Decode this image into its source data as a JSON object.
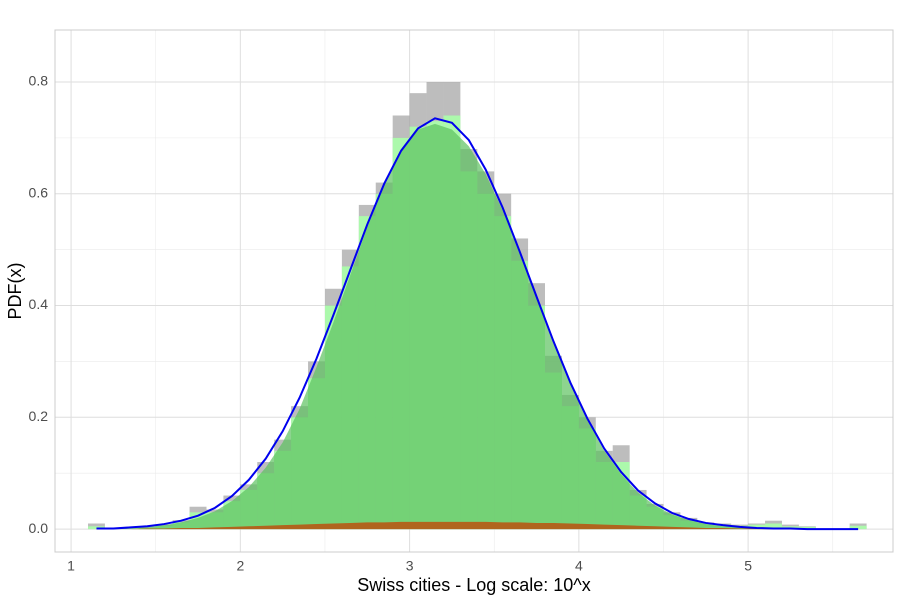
{
  "chart_data": {
    "type": "histogram",
    "x_label": "Swiss cities - Log scale: 10^x",
    "y_label": "PDF(x)",
    "xlim": [
      0.905,
      5.856
    ],
    "ylim": [
      -0.041,
      0.893
    ],
    "xticks": [
      1,
      2,
      3,
      4,
      5
    ],
    "yticks": [
      {
        "value": 0,
        "label": "0.0"
      },
      0.2,
      0.4,
      0.6,
      0.8
    ],
    "x_minor": [
      1.5,
      2.5,
      3.5,
      4.5,
      5.5
    ],
    "y_minor": [
      0.1,
      0.3,
      0.5,
      0.7
    ],
    "grid": true,
    "bins": [
      1.1,
      1.2,
      1.3,
      1.4,
      1.5,
      1.6,
      1.7,
      1.8,
      1.9,
      2.0,
      2.1,
      2.2,
      2.3,
      2.4,
      2.5,
      2.6,
      2.7,
      2.8,
      2.9,
      3.0,
      3.1,
      3.2,
      3.3,
      3.4,
      3.5,
      3.6,
      3.7,
      3.8,
      3.9,
      4.0,
      4.1,
      4.2,
      4.3,
      4.4,
      4.5,
      4.6,
      4.7,
      4.8,
      4.9,
      5.0,
      5.1,
      5.2,
      5.3,
      5.4,
      5.5,
      5.6,
      5.7
    ],
    "histograms": [
      {
        "color": "#999999",
        "opacity": 0.65,
        "values": [
          0.01,
          0,
          0,
          0.003,
          0.008,
          0.016,
          0.04,
          0.035,
          0.06,
          0.08,
          0.12,
          0.16,
          0.22,
          0.3,
          0.43,
          0.5,
          0.58,
          0.62,
          0.74,
          0.78,
          0.8,
          0.8,
          0.68,
          0.64,
          0.6,
          0.52,
          0.44,
          0.31,
          0.24,
          0.2,
          0.14,
          0.15,
          0.07,
          0.045,
          0.03,
          0.02,
          0.012,
          0.01,
          0.008,
          0.01,
          0.015,
          0.008,
          0.005,
          0,
          0,
          0.01
        ]
      },
      {
        "color": "#aaffaa",
        "opacity": 0.9,
        "values": [
          0.005,
          0,
          0,
          0.002,
          0.006,
          0.012,
          0.03,
          0.03,
          0.05,
          0.07,
          0.1,
          0.14,
          0.2,
          0.27,
          0.4,
          0.47,
          0.56,
          0.6,
          0.7,
          0.72,
          0.73,
          0.74,
          0.64,
          0.6,
          0.56,
          0.48,
          0.4,
          0.28,
          0.22,
          0.18,
          0.12,
          0.12,
          0.06,
          0.04,
          0.025,
          0.015,
          0.01,
          0.008,
          0.006,
          0.008,
          0.01,
          0.005,
          0.004,
          0,
          0,
          0.006
        ]
      }
    ],
    "x": [
      1.15,
      1.25,
      1.35,
      1.45,
      1.55,
      1.65,
      1.75,
      1.85,
      1.95,
      2.05,
      2.15,
      2.25,
      2.35,
      2.45,
      2.55,
      2.65,
      2.75,
      2.85,
      2.95,
      3.05,
      3.15,
      3.25,
      3.35,
      3.45,
      3.55,
      3.65,
      3.75,
      3.85,
      3.95,
      4.05,
      4.15,
      4.25,
      4.35,
      4.45,
      4.55,
      4.65,
      4.75,
      4.85,
      4.95,
      5.05,
      5.15,
      5.25,
      5.35,
      5.45,
      5.55,
      5.65
    ],
    "curves": [
      {
        "kind": "area",
        "color": "#5cc260",
        "opacity": 0.7,
        "values": [
          0.001,
          0.001,
          0.002,
          0.004,
          0.007,
          0.012,
          0.02,
          0.032,
          0.05,
          0.075,
          0.11,
          0.155,
          0.215,
          0.29,
          0.37,
          0.455,
          0.54,
          0.615,
          0.675,
          0.715,
          0.725,
          0.715,
          0.685,
          0.635,
          0.57,
          0.495,
          0.415,
          0.335,
          0.26,
          0.195,
          0.14,
          0.098,
          0.065,
          0.042,
          0.026,
          0.016,
          0.009,
          0.005,
          0.003,
          0.002,
          0.001,
          0.001,
          0,
          0,
          0,
          0
        ]
      },
      {
        "kind": "area",
        "color": "#b0651e",
        "opacity": 1,
        "values": [
          0,
          0,
          0,
          0.001,
          0.001,
          0.002,
          0.002,
          0.003,
          0.004,
          0.005,
          0.006,
          0.007,
          0.008,
          0.009,
          0.01,
          0.011,
          0.012,
          0.012,
          0.013,
          0.013,
          0.013,
          0.013,
          0.013,
          0.013,
          0.012,
          0.012,
          0.011,
          0.011,
          0.01,
          0.009,
          0.008,
          0.007,
          0.006,
          0.005,
          0.004,
          0.003,
          0.002,
          0.002,
          0.001,
          0.001,
          0.001,
          0,
          0,
          0,
          0,
          0
        ]
      },
      {
        "kind": "line",
        "color": "#0000ee",
        "opacity": 1,
        "values": [
          0.001,
          0.001,
          0.003,
          0.005,
          0.009,
          0.015,
          0.024,
          0.038,
          0.059,
          0.088,
          0.126,
          0.175,
          0.235,
          0.305,
          0.383,
          0.464,
          0.545,
          0.618,
          0.677,
          0.717,
          0.735,
          0.727,
          0.696,
          0.643,
          0.575,
          0.497,
          0.416,
          0.336,
          0.262,
          0.198,
          0.144,
          0.102,
          0.069,
          0.046,
          0.029,
          0.018,
          0.011,
          0.007,
          0.004,
          0.002,
          0.001,
          0.001,
          0,
          0,
          0,
          0
        ]
      }
    ]
  }
}
